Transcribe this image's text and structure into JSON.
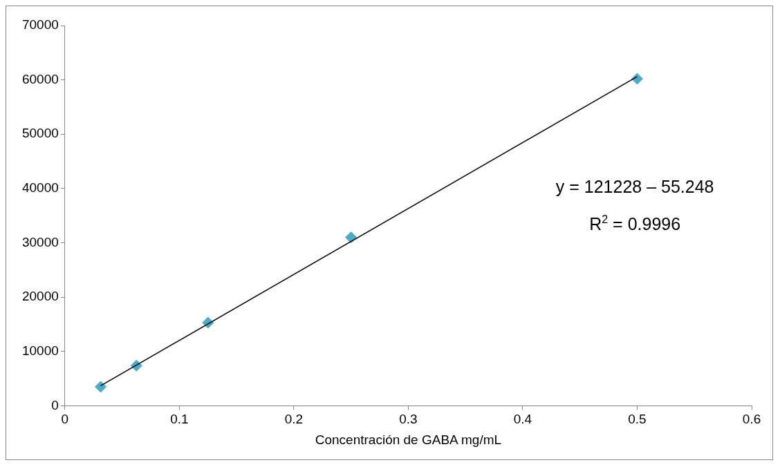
{
  "chart_data": {
    "type": "scatter",
    "xlabel": "Concentración de GABA mg/mL",
    "xlim": [
      0,
      0.6
    ],
    "xticks": [
      0,
      0.1,
      0.2,
      0.3,
      0.4,
      0.5,
      0.6
    ],
    "ylim": [
      0,
      70000
    ],
    "yticks": [
      0,
      10000,
      20000,
      30000,
      40000,
      50000,
      60000,
      70000
    ],
    "grid": false,
    "legend": false,
    "series": [
      {
        "type": "scatter",
        "color": "#4bacc6",
        "marker": "diamond",
        "x": [
          0.03125,
          0.0625,
          0.125,
          0.25,
          0.5
        ],
        "values": [
          3500,
          7400,
          15300,
          31000,
          60200
        ]
      },
      {
        "type": "line",
        "color": "#000000",
        "marker": "none",
        "line_style": "solid",
        "x": [
          0.03125,
          0.5
        ],
        "values": [
          3700,
          60600
        ]
      }
    ],
    "annotations": [
      "y = 121228 – 55.248",
      "R$^{2}$ = 0.9996"
    ]
  }
}
